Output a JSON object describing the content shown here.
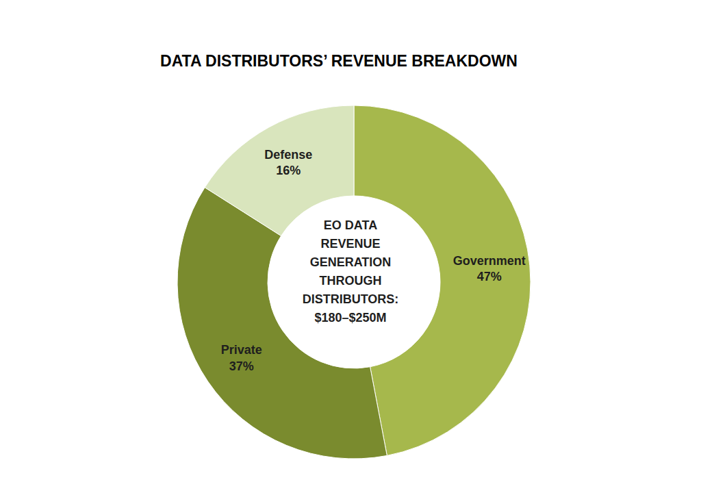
{
  "chart_data": {
    "type": "pie",
    "title": "DATA DISTRIBUTORS’ REVENUE BREAKDOWN",
    "categories": [
      "Government",
      "Private",
      "Defense"
    ],
    "values": [
      47,
      37,
      16
    ],
    "value_labels": [
      "47%",
      "37%",
      "16%"
    ],
    "colors": [
      "#a6b84c",
      "#7a8b2e",
      "#d9e5bd"
    ],
    "data_labels": true,
    "annotation": [
      "EO DATA",
      "REVENUE",
      "GENERATION",
      "THROUGH",
      "DISTRIBUTORS:",
      "$180–$250M"
    ]
  }
}
